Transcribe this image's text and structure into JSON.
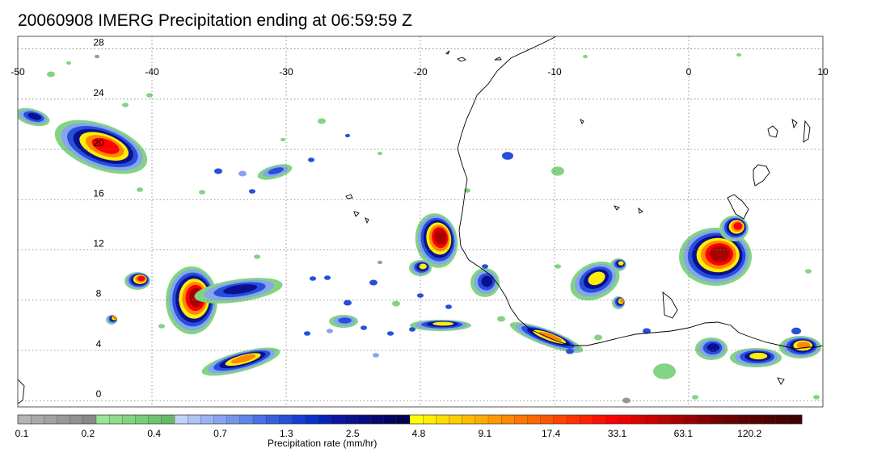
{
  "title": "20060908 IMERG Precipitation ending at 06:59:59 Z",
  "map": {
    "lon_ticks": [
      "-50",
      "-40",
      "-30",
      "-20",
      "-10",
      "0",
      "10"
    ],
    "lat_ticks": [
      "28",
      "24",
      "20",
      "16",
      "12",
      "8",
      "4",
      "0"
    ],
    "lon_range": [
      -50,
      10
    ],
    "lat_range": [
      -0.5,
      29
    ],
    "grid": "dotted",
    "coastline_color": "#000000"
  },
  "colorbar": {
    "label": "Precipitation rate (mm/hr)",
    "tick_labels": [
      "0.1",
      "0.2",
      "0.4",
      "0.7",
      "1.3",
      "2.5",
      "4.8",
      "9.1",
      "17.4",
      "33.1",
      "63.1",
      "120.2"
    ],
    "colors": [
      "#b4b4b4",
      "#aaaaaa",
      "#a2a2a2",
      "#999999",
      "#919191",
      "#888888",
      "#97e597",
      "#8cdc8c",
      "#82d482",
      "#78cc78",
      "#6ec36e",
      "#64bb64",
      "#c3d2f7",
      "#afc3f5",
      "#9bb3f1",
      "#87a4ee",
      "#7394ea",
      "#5f85e6",
      "#4a6fe6",
      "#385fe0",
      "#264fda",
      "#1440d4",
      "#0a30ca",
      "#0822b4",
      "#0c14a0",
      "#0a1090",
      "#080c80",
      "#060870",
      "#040460",
      "#020250",
      "#ffff00",
      "#ffee00",
      "#ffdd00",
      "#ffcc00",
      "#ffbb00",
      "#ffaa00",
      "#ff9900",
      "#ff8800",
      "#ff7700",
      "#ff6600",
      "#ff5500",
      "#ff4400",
      "#ff3300",
      "#ff2200",
      "#ff1100",
      "#ff0000",
      "#ee0000",
      "#dd0000",
      "#cc0000",
      "#bb0000",
      "#aa0000",
      "#990000",
      "#880000",
      "#770000",
      "#6a0000",
      "#600000",
      "#580000",
      "#500000",
      "#480000",
      "#400000"
    ]
  }
}
